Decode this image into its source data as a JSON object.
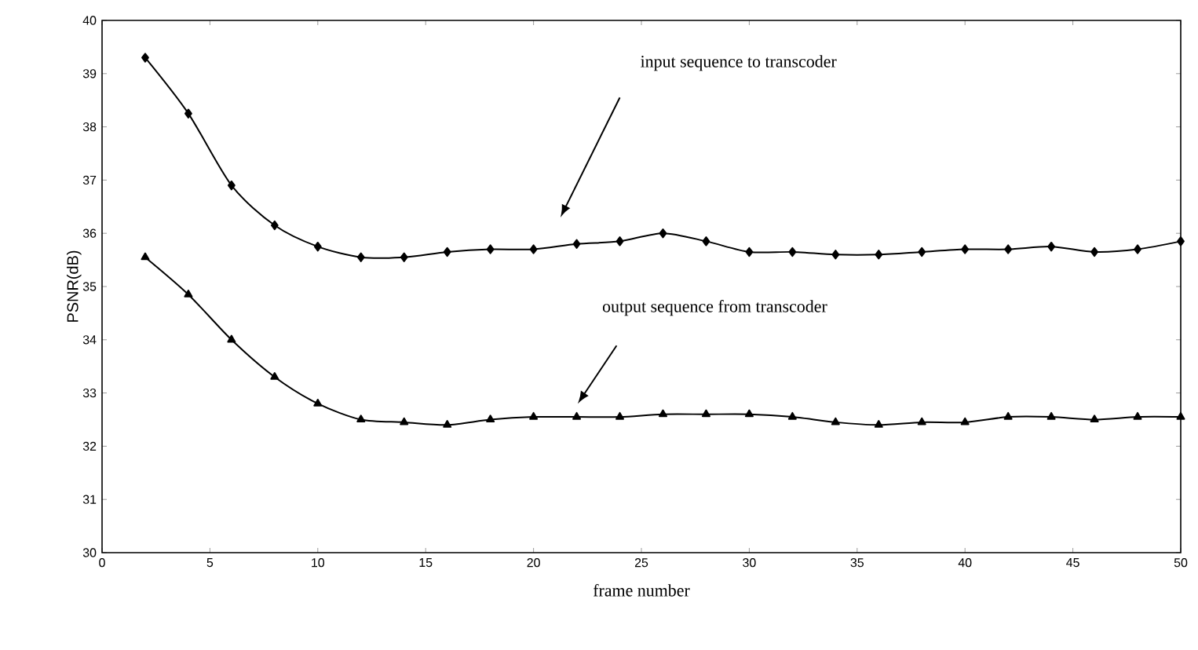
{
  "chart_data": {
    "type": "line",
    "xlabel": "frame number",
    "ylabel": "PSNR(dB)",
    "x": [
      2,
      4,
      6,
      8,
      10,
      12,
      14,
      16,
      18,
      20,
      22,
      24,
      26,
      28,
      30,
      32,
      34,
      36,
      38,
      40,
      42,
      44,
      46,
      48,
      50
    ],
    "series": [
      {
        "color": "#000000",
        "marker": "diamond",
        "values": [
          39.3,
          38.25,
          36.9,
          36.15,
          35.75,
          35.55,
          35.55,
          35.65,
          35.7,
          35.7,
          35.8,
          35.85,
          36.0,
          35.85,
          35.65,
          35.65,
          35.6,
          35.6,
          35.65,
          35.7,
          35.7,
          35.75,
          35.65,
          35.7,
          35.85
        ]
      },
      {
        "color": "#000000",
        "marker": "triangle",
        "values": [
          35.55,
          34.85,
          34.0,
          33.3,
          32.8,
          32.5,
          32.45,
          32.4,
          32.5,
          32.55,
          32.55,
          32.55,
          32.6,
          32.6,
          32.6,
          32.55,
          32.45,
          32.4,
          32.45,
          32.45,
          32.55,
          32.55,
          32.5,
          32.55,
          32.55
        ]
      }
    ],
    "annotations": [
      "input sequence to transcoder",
      "output sequence from transcoder"
    ],
    "xlim": [
      0,
      50
    ],
    "ylim": [
      30,
      40
    ],
    "xticks": [
      0,
      5,
      10,
      15,
      20,
      25,
      30,
      35,
      40,
      45,
      50
    ],
    "yticks": [
      30,
      31,
      32,
      33,
      34,
      35,
      36,
      37,
      38,
      39,
      40
    ],
    "grid": false,
    "line_style": "solid"
  }
}
